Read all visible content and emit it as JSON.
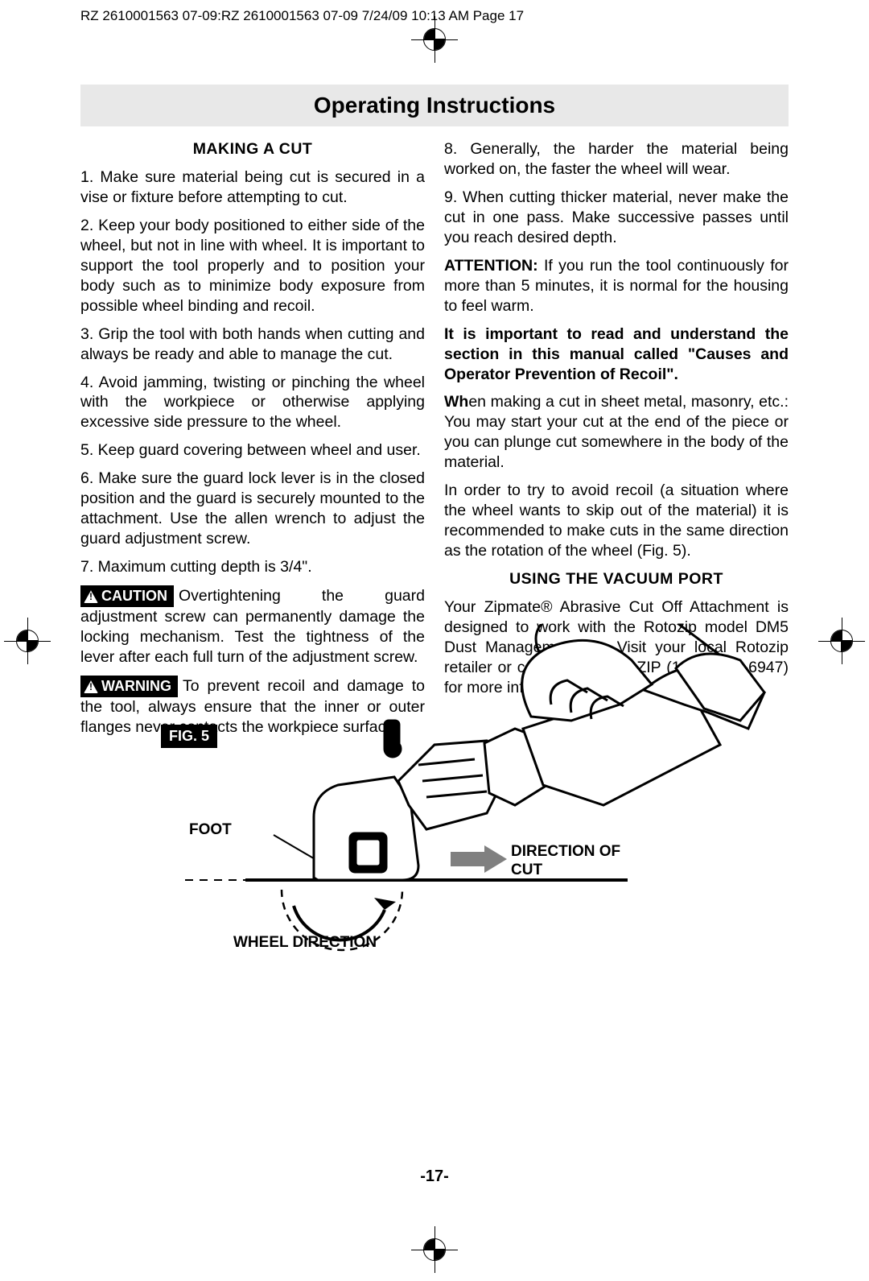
{
  "header": {
    "text": "RZ 2610001563 07-09:RZ 2610001563 07-09  7/24/09  10:13 AM  Page 17"
  },
  "title": "Operating Instructions",
  "page_number": "-17-",
  "left_column": {
    "heading": "MAKING A CUT",
    "p1": "1. Make sure material being cut is secured in a vise or fixture before attempting to cut.",
    "p2": "2. Keep your body positioned to either side of the wheel, but not in line with wheel. It is important to support the tool properly and to position your body such as to minimize body exposure from possible wheel binding and recoil.",
    "p3": "3. Grip the tool with both hands when cutting and always be ready and able to manage the cut.",
    "p4": "4. Avoid jamming, twisting or pinching the wheel with the workpiece or otherwise applying excessive side pressure to the wheel.",
    "p5": "5. Keep guard covering between wheel and user.",
    "p6": "6. Make sure the guard lock lever is in the closed position and the guard is securely mounted to the attachment. Use the allen wrench to adjust the guard adjustment screw.",
    "p7": "7. Maximum cutting depth is 3/4\".",
    "caution_label": "CAUTION",
    "caution_text": "Overtightening the guard adjustment screw can permanently damage the locking mechanism. Test the tightness of the lever after each full turn of the adjustment screw.",
    "warning_label": "WARNING",
    "warning_text": "To prevent recoil and damage to the tool, always ensure that the inner or outer flanges never contacts the workpiece surface."
  },
  "right_column": {
    "p8": "8. Generally, the harder the material being worked on, the faster the wheel will wear.",
    "p9": "9. When cutting thicker material, never make the cut in one pass. Make successive passes until you reach desired depth.",
    "attn_label": "ATTENTION:",
    "attn_text": " If you run the tool continuously for more than 5 minutes, it is normal for the housing to feel warm.",
    "bold_para": "It is important to read and understand the section in this manual called \"Causes and Operator Prevention of Recoil\".",
    "p10_lead": "Wh",
    "p10_rest": "en making a cut in sheet metal, masonry, etc.: You may start your cut at the end of the piece or you can plunge cut somewhere in the body of the material.",
    "p11": "In order to try to avoid recoil (a situation where the wheel wants to skip out of the material) it is recommended to make cuts in the same direction as the rotation of the wheel (Fig. 5).",
    "heading2": "USING THE VACUUM PORT",
    "p12": "Your Zipmate® Abrasive Cut Off Attachment is designed to work with the Rotozip model DM5 Dust Management Kit. Visit your local Rotozip retailer or call 1-877-ROTOZIP (1-877-768-6947) for more information."
  },
  "figure": {
    "label": "FIG. 5",
    "foot": "FOOT",
    "direction": "DIRECTION OF CUT",
    "wheel": "WHEEL DIRECTION",
    "stroke_color": "#000000",
    "fill_color": "#ffffff",
    "arrow_fill": "#808080"
  }
}
